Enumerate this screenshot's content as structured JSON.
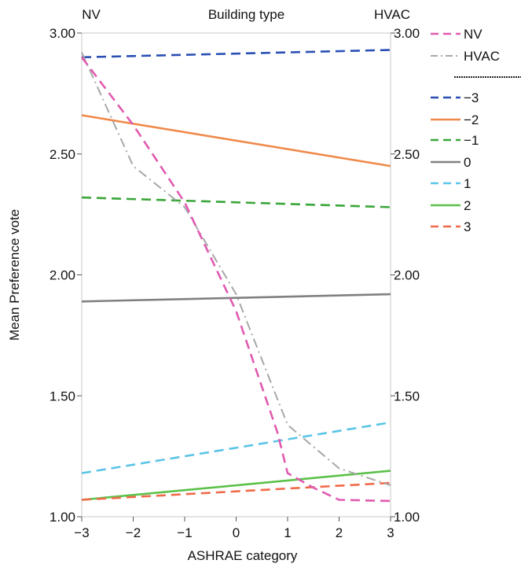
{
  "chart_data": {
    "type": "line",
    "xlabel": "ASHRAE category",
    "ylabel": "Mean Preference vote",
    "top_axis_title": "Building type",
    "top_left_label": "NV",
    "top_right_label": "HVAC",
    "xlim": [
      -3,
      3
    ],
    "ylim": [
      1.0,
      3.0
    ],
    "x_ticks": [
      "−3",
      "−2",
      "−1",
      "0",
      "1",
      "2",
      "3"
    ],
    "y_ticks_left": [
      "1.00",
      "1.50",
      "2.00",
      "2.50",
      "3.00"
    ],
    "y_ticks_right": [
      "1.00",
      "1.50",
      "2.00",
      "2.50",
      "3.00"
    ],
    "y_tick_values": [
      1.0,
      1.5,
      2.0,
      2.5,
      3.0
    ],
    "x_tick_values": [
      -3,
      -2,
      -1,
      0,
      1,
      2,
      3
    ],
    "grid": false,
    "legend_position": "right",
    "series": [
      {
        "name": "NV",
        "color": "#e05bb0",
        "dash": "dashed",
        "x": [
          -3,
          -2,
          -1,
          0,
          0.8,
          1,
          1.5,
          2,
          3
        ],
        "y": [
          2.9,
          2.62,
          2.3,
          1.85,
          1.35,
          1.18,
          1.12,
          1.07,
          1.065
        ]
      },
      {
        "name": "HVAC",
        "color": "#a8a8a8",
        "dash": "dashdot",
        "x": [
          -3,
          -2,
          -1,
          0,
          1,
          2,
          3
        ],
        "y": [
          2.92,
          2.45,
          2.28,
          1.92,
          1.38,
          1.2,
          1.13
        ]
      },
      {
        "name": "−3",
        "color": "#2a4fb5",
        "dash": "dashed",
        "x": [
          -3,
          3
        ],
        "y": [
          2.9,
          2.93
        ]
      },
      {
        "name": "−2",
        "color": "#f08a4b",
        "dash": "solid",
        "x": [
          -3,
          3
        ],
        "y": [
          2.66,
          2.45
        ]
      },
      {
        "name": "−1",
        "color": "#3aa63a",
        "dash": "dashed",
        "x": [
          -3,
          3
        ],
        "y": [
          2.32,
          2.28
        ]
      },
      {
        "name": "0",
        "color": "#808080",
        "dash": "solid",
        "x": [
          -3,
          3
        ],
        "y": [
          1.89,
          1.92
        ]
      },
      {
        "name": "1",
        "color": "#5bc4e6",
        "dash": "dashed",
        "x": [
          -3,
          3
        ],
        "y": [
          1.18,
          1.39
        ]
      },
      {
        "name": "2",
        "color": "#5cc14a",
        "dash": "solid",
        "x": [
          -3,
          3
        ],
        "y": [
          1.07,
          1.19
        ]
      },
      {
        "name": "3",
        "color": "#f06a4a",
        "dash": "dashed",
        "x": [
          -3,
          3
        ],
        "y": [
          1.07,
          1.14
        ]
      }
    ],
    "legend_separator_after": 2
  }
}
